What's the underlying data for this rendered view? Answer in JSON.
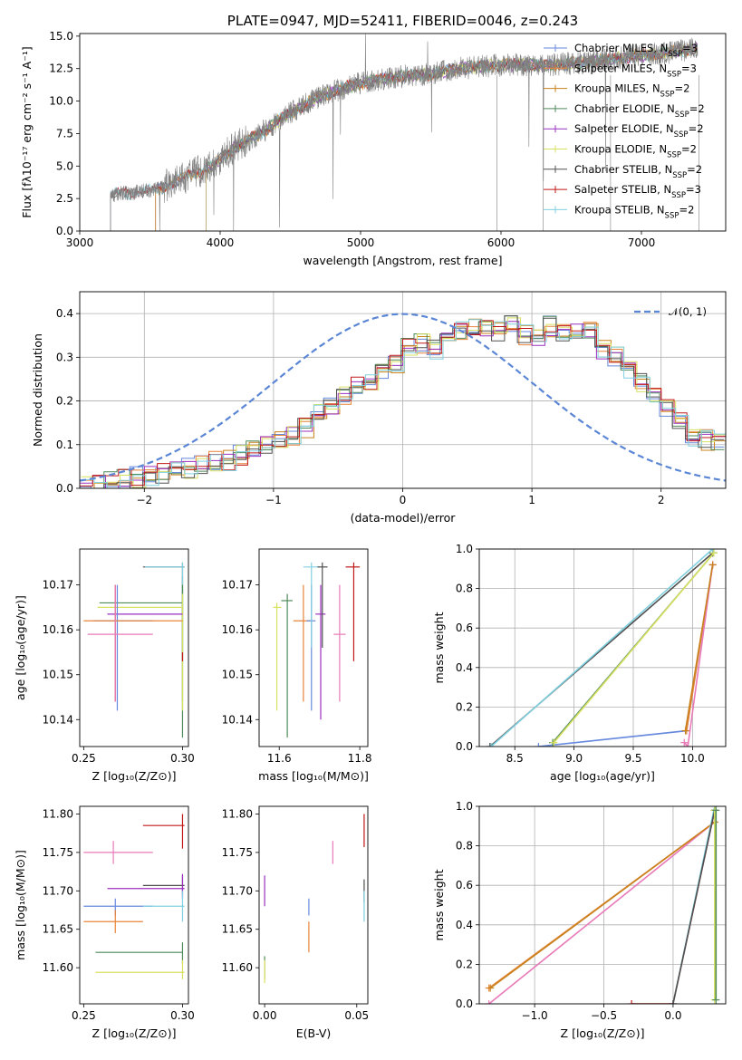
{
  "chart_data": [
    {
      "id": "spectrum",
      "type": "line",
      "title": "PLATE=0947, MJD=52411, FIBERID=0046, z=0.243",
      "xlabel": "wavelength [Angstrom, rest frame]",
      "ylabel": "Flux [fλ10⁻¹⁷ erg cm⁻² s⁻¹ A⁻¹]",
      "xlim": [
        3000,
        7600
      ],
      "ylim": [
        0,
        15.2
      ],
      "xticks": [
        3000,
        4000,
        5000,
        6000,
        7000
      ],
      "yticks": [
        0.0,
        2.5,
        5.0,
        7.5,
        10.0,
        12.5,
        15.0
      ],
      "grid": false,
      "legend_position": "top-right",
      "observed_color": "#808080",
      "observed_continuum": {
        "x": [
          3220,
          3400,
          3550,
          3700,
          3850,
          3950,
          4100,
          4300,
          4500,
          4700,
          4900,
          5100,
          5300,
          5500,
          5700,
          5900,
          6100,
          6300,
          6500,
          6700,
          6900,
          7100,
          7300,
          7400
        ],
        "y": [
          2.8,
          3.0,
          3.2,
          3.9,
          4.6,
          5.0,
          6.4,
          7.6,
          9.1,
          10.3,
          11.1,
          11.6,
          11.9,
          12.1,
          12.5,
          12.7,
          12.8,
          12.7,
          12.9,
          13.1,
          13.4,
          13.6,
          13.9,
          14.1
        ]
      },
      "series": [
        {
          "name": "Chabrier MILES, N",
          "sub": "SSP",
          "suffix": "=3",
          "color": "#6688dd",
          "start": 3540
        },
        {
          "name": "Salpeter MILES, N",
          "sub": "SSP",
          "suffix": "=3",
          "color": "#e8843a",
          "start": 3540
        },
        {
          "name": "Kroupa MILES, N",
          "sub": "SSP",
          "suffix": "=2",
          "color": "#c8821e",
          "start": 3540
        },
        {
          "name": "Chabrier ELODIE, N",
          "sub": "SSP",
          "suffix": "=2",
          "color": "#4f8a5a",
          "start": 3900
        },
        {
          "name": "Salpeter ELODIE, N",
          "sub": "SSP",
          "suffix": "=2",
          "color": "#9b30c0",
          "start": 3900
        },
        {
          "name": "Kroupa ELODIE, N",
          "sub": "SSP",
          "suffix": "=2",
          "color": "#d8e060",
          "start": 3900
        },
        {
          "name": "Chabrier STELIB, N",
          "sub": "SSP",
          "suffix": "=2",
          "color": "#505050",
          "start": 3220
        },
        {
          "name": "Salpeter STELIB, N",
          "sub": "SSP",
          "suffix": "=3",
          "color": "#c01818",
          "start": 3220
        },
        {
          "name": "Kroupa STELIB, N",
          "sub": "SSP",
          "suffix": "=2",
          "color": "#80d0e0",
          "start": 3220
        }
      ]
    },
    {
      "id": "residuals",
      "type": "line",
      "xlabel": "(data-model)/error",
      "ylabel": "Normed distribution",
      "xlim": [
        -2.5,
        2.5
      ],
      "ylim": [
        0,
        0.45
      ],
      "xticks": [
        -2,
        -1,
        0,
        1,
        2
      ],
      "xtick_labels": [
        "−2",
        "−1",
        "0",
        "1",
        "2"
      ],
      "yticks": [
        0.0,
        0.1,
        0.2,
        0.3,
        0.4
      ],
      "grid": true,
      "legend_position": "top-right",
      "gaussian": {
        "name": "𝒩(0, 1)",
        "color": "#5b86d6"
      },
      "histogram_base": {
        "bin_width": 0.1,
        "x_start": -2.5,
        "values": [
          0.005,
          0.01,
          0.015,
          0.02,
          0.025,
          0.03,
          0.035,
          0.04,
          0.045,
          0.05,
          0.06,
          0.065,
          0.075,
          0.085,
          0.1,
          0.11,
          0.12,
          0.14,
          0.17,
          0.19,
          0.21,
          0.23,
          0.25,
          0.27,
          0.28,
          0.32,
          0.33,
          0.32,
          0.34,
          0.36,
          0.37,
          0.37,
          0.36,
          0.38,
          0.35,
          0.34,
          0.37,
          0.35,
          0.36,
          0.36,
          0.32,
          0.3,
          0.27,
          0.24,
          0.22,
          0.18,
          0.15,
          0.12,
          0.11,
          0.1
        ]
      }
    },
    {
      "id": "age-vs-Z",
      "type": "scatter",
      "xlabel": "Z [log₁₀(Z/Z⊙)]",
      "ylabel": "age  [log₁₀(age/yr)]",
      "xlim": [
        0.248,
        0.303
      ],
      "ylim": [
        10.134,
        10.178
      ],
      "xticks": [
        0.25,
        0.3
      ],
      "xtick_labels": [
        "0.25",
        "0.30"
      ],
      "yticks": [
        10.14,
        10.15,
        10.16,
        10.17
      ],
      "grid": false,
      "points": [
        {
          "x": 0.3,
          "y": 10.1635,
          "xerr": [
            0.3,
            0.3
          ],
          "yerr": [
            10.136,
            10.172
          ],
          "color": "#4f8a5a"
        },
        {
          "x": 0.3,
          "y": 10.174,
          "xerr": [
            0.28,
            0.301
          ],
          "yerr": [
            10.153,
            10.175
          ],
          "color": "#505050"
        },
        {
          "x": 0.3,
          "y": 10.174,
          "xerr": [
            0.281,
            0.301
          ],
          "yerr": [
            10.154,
            10.175
          ],
          "color": "#80d0e0"
        },
        {
          "x": 0.3,
          "y": 10.166,
          "xerr": [
            0.258,
            0.3
          ],
          "yerr": [
            10.144,
            10.17
          ],
          "color": "#4f8a5a"
        },
        {
          "x": 0.3,
          "y": 10.165,
          "xerr": [
            0.257,
            0.3
          ],
          "yerr": [
            10.142,
            10.168
          ],
          "color": "#d8e060"
        },
        {
          "x": 0.266,
          "y": 10.1635,
          "xerr": [
            0.262,
            0.3
          ],
          "yerr": [
            10.144,
            10.17
          ],
          "color": "#9b30c0"
        },
        {
          "x": 0.267,
          "y": 10.162,
          "xerr": [
            0.255,
            0.285
          ],
          "yerr": [
            10.142,
            10.17
          ],
          "color": "#6688dd"
        },
        {
          "x": 0.266,
          "y": 10.162,
          "xerr": [
            0.25,
            0.3
          ],
          "yerr": [
            10.144,
            10.17
          ],
          "color": "#e8843a"
        },
        {
          "x": 0.266,
          "y": 10.159,
          "xerr": [
            0.252,
            0.285
          ],
          "yerr": [
            10.144,
            10.17
          ],
          "color": "#e87ab8"
        },
        {
          "x": 0.3,
          "y": 10.154,
          "xerr": [
            0.3,
            0.3
          ],
          "yerr": [
            10.153,
            10.155
          ],
          "color": "#c01818"
        }
      ]
    },
    {
      "id": "age-vs-mass",
      "type": "scatter",
      "xlabel": "mass [log₁₀(M/M⊙)]",
      "ylabel": "",
      "xlim": [
        11.55,
        11.82
      ],
      "ylim": [
        10.134,
        10.178
      ],
      "xticks": [
        11.6,
        11.8
      ],
      "xtick_labels": [
        "11.6",
        "11.8"
      ],
      "yticks": [
        10.14,
        10.15,
        10.16,
        10.17
      ],
      "grid": false,
      "points": [
        {
          "x": 11.594,
          "y": 10.165,
          "xerr": [
            11.585,
            11.605
          ],
          "yerr": [
            10.142,
            10.166
          ],
          "color": "#d8e060"
        },
        {
          "x": 11.62,
          "y": 10.1665,
          "xerr": [
            11.605,
            11.633
          ],
          "yerr": [
            10.136,
            10.168
          ],
          "color": "#4f8a5a"
        },
        {
          "x": 11.66,
          "y": 10.162,
          "xerr": [
            11.635,
            11.68
          ],
          "yerr": [
            10.144,
            10.17
          ],
          "color": "#e8843a"
        },
        {
          "x": 11.68,
          "y": 10.162,
          "xerr": [
            11.668,
            11.69
          ],
          "yerr": [
            10.142,
            10.17
          ],
          "color": "#6688dd"
        },
        {
          "x": 11.68,
          "y": 10.174,
          "xerr": [
            11.66,
            11.7
          ],
          "yerr": [
            10.156,
            10.175
          ],
          "color": "#80d0e0"
        },
        {
          "x": 11.703,
          "y": 10.1635,
          "xerr": [
            11.69,
            11.715
          ],
          "yerr": [
            10.14,
            10.17
          ],
          "color": "#9b30c0"
        },
        {
          "x": 11.707,
          "y": 10.174,
          "xerr": [
            11.695,
            11.72
          ],
          "yerr": [
            10.156,
            10.175
          ],
          "color": "#505050"
        },
        {
          "x": 11.75,
          "y": 10.159,
          "xerr": [
            11.735,
            11.765
          ],
          "yerr": [
            10.144,
            10.17
          ],
          "color": "#e87ab8"
        },
        {
          "x": 11.785,
          "y": 10.174,
          "xerr": [
            11.765,
            11.8
          ],
          "yerr": [
            10.153,
            10.175
          ],
          "color": "#c01818"
        }
      ]
    },
    {
      "id": "weight-vs-age",
      "type": "line",
      "xlabel": "age  [log₁₀(age/yr)]",
      "ylabel": "mass weight",
      "xlim": [
        8.2,
        10.28
      ],
      "ylim": [
        0,
        1.0
      ],
      "xticks": [
        8.5,
        9.0,
        9.5,
        10.0
      ],
      "xtick_labels": [
        "8.5",
        "9.0",
        "9.5",
        "10.0"
      ],
      "yticks": [
        0.0,
        0.2,
        0.4,
        0.6,
        0.8,
        1.0
      ],
      "grid": true,
      "series": [
        {
          "x": [
            8.7,
            9.95,
            10.17
          ],
          "y": [
            0.0,
            0.08,
            0.92
          ],
          "color": "#6688dd"
        },
        {
          "x": [
            9.95,
            10.17
          ],
          "y": [
            0.08,
            0.92
          ],
          "color": "#e8843a"
        },
        {
          "x": [
            9.93,
            9.96,
            10.17
          ],
          "y": [
            0.02,
            0.0,
            0.92
          ],
          "color": "#e87ab8"
        },
        {
          "x": [
            8.29,
            10.17
          ],
          "y": [
            0.0,
            0.98
          ],
          "color": "#505050"
        },
        {
          "x": [
            8.3,
            10.17
          ],
          "y": [
            0.0,
            1.0
          ],
          "color": "#80d0e0"
        },
        {
          "x": [
            8.82,
            10.18
          ],
          "y": [
            0.02,
            0.98
          ],
          "color": "#4f8a5a"
        },
        {
          "x": [
            8.83,
            10.18
          ],
          "y": [
            0.02,
            0.98
          ],
          "color": "#d8e060"
        },
        {
          "x": [
            9.94,
            10.17
          ],
          "y": [
            0.08,
            0.92
          ],
          "color": "#c8821e"
        }
      ]
    },
    {
      "id": "mass-vs-Z",
      "type": "scatter",
      "xlabel": "Z [log₁₀(Z/Z⊙)]",
      "ylabel": "mass [log₁₀(M/M⊙)]",
      "xlim": [
        0.248,
        0.303
      ],
      "ylim": [
        11.553,
        11.81
      ],
      "xticks": [
        0.25,
        0.3
      ],
      "xtick_labels": [
        "0.25",
        "0.30"
      ],
      "yticks": [
        11.6,
        11.65,
        11.7,
        11.75,
        11.8
      ],
      "grid": false,
      "points": [
        {
          "x": 0.3,
          "y": 11.785,
          "xerr": [
            0.28,
            0.301
          ],
          "yerr": [
            11.755,
            11.8
          ],
          "color": "#c01818"
        },
        {
          "x": 0.265,
          "y": 11.75,
          "xerr": [
            0.25,
            0.285
          ],
          "yerr": [
            11.735,
            11.765
          ],
          "color": "#e87ab8"
        },
        {
          "x": 0.3,
          "y": 11.707,
          "xerr": [
            0.28,
            0.301
          ],
          "yerr": [
            11.695,
            11.72
          ],
          "color": "#505050"
        },
        {
          "x": 0.3,
          "y": 11.703,
          "xerr": [
            0.262,
            0.301
          ],
          "yerr": [
            11.69,
            11.722
          ],
          "color": "#9b30c0"
        },
        {
          "x": 0.266,
          "y": 11.68,
          "xerr": [
            0.25,
            0.285
          ],
          "yerr": [
            11.668,
            11.69
          ],
          "color": "#6688dd"
        },
        {
          "x": 0.3,
          "y": 11.68,
          "xerr": [
            0.28,
            0.301
          ],
          "yerr": [
            11.66,
            11.7
          ],
          "color": "#80d0e0"
        },
        {
          "x": 0.266,
          "y": 11.66,
          "xerr": [
            0.25,
            0.28
          ],
          "yerr": [
            11.645,
            11.675
          ],
          "color": "#e8843a"
        },
        {
          "x": 0.3,
          "y": 11.62,
          "xerr": [
            0.256,
            0.3
          ],
          "yerr": [
            11.605,
            11.633
          ],
          "color": "#4f8a5a"
        },
        {
          "x": 0.3,
          "y": 11.594,
          "xerr": [
            0.256,
            0.301
          ],
          "yerr": [
            11.585,
            11.61
          ],
          "color": "#d8e060"
        }
      ]
    },
    {
      "id": "mass-vs-EBV",
      "type": "scatter",
      "xlabel": "E(B-V)",
      "ylabel": "",
      "xlim": [
        -0.003,
        0.056
      ],
      "ylim": [
        11.553,
        11.81
      ],
      "xticks": [
        0.0,
        0.05
      ],
      "xtick_labels": [
        "0.00",
        "0.05"
      ],
      "yticks": [
        11.6,
        11.65,
        11.7,
        11.75,
        11.8
      ],
      "grid": false,
      "points": [
        {
          "x": 0.054,
          "y": 11.785,
          "xerr": [
            0.054,
            0.054
          ],
          "yerr": [
            11.757,
            11.8
          ],
          "color": "#c01818"
        },
        {
          "x": 0.037,
          "y": 11.75,
          "xerr": [
            0.037,
            0.037
          ],
          "yerr": [
            11.735,
            11.765
          ],
          "color": "#e87ab8"
        },
        {
          "x": 0.054,
          "y": 11.7,
          "xerr": [
            0.054,
            0.054
          ],
          "yerr": [
            11.685,
            11.715
          ],
          "color": "#505050"
        },
        {
          "x": 0.054,
          "y": 11.68,
          "xerr": [
            0.054,
            0.054
          ],
          "yerr": [
            11.66,
            11.7
          ],
          "color": "#80d0e0"
        },
        {
          "x": 0.0,
          "y": 11.703,
          "xerr": [
            0.0,
            0.0
          ],
          "yerr": [
            11.68,
            11.72
          ],
          "color": "#9b30c0"
        },
        {
          "x": 0.024,
          "y": 11.68,
          "xerr": [
            0.024,
            0.024
          ],
          "yerr": [
            11.668,
            11.69
          ],
          "color": "#6688dd"
        },
        {
          "x": 0.024,
          "y": 11.64,
          "xerr": [
            0.024,
            0.024
          ],
          "yerr": [
            11.62,
            11.66
          ],
          "color": "#e8843a"
        },
        {
          "x": 0.0,
          "y": 11.6,
          "xerr": [
            0.0,
            0.0
          ],
          "yerr": [
            11.585,
            11.615
          ],
          "color": "#4f8a5a"
        },
        {
          "x": 0.0,
          "y": 11.594,
          "xerr": [
            0.0,
            0.0
          ],
          "yerr": [
            11.58,
            11.61
          ],
          "color": "#d8e060"
        }
      ]
    },
    {
      "id": "weight-vs-Z",
      "type": "line",
      "xlabel": "Z [log₁₀(Z/Z⊙)]",
      "ylabel": "mass weight",
      "xlim": [
        -1.4,
        0.38
      ],
      "ylim": [
        0,
        1.0
      ],
      "xticks": [
        -1.0,
        -0.5,
        0.0
      ],
      "xtick_labels": [
        "−1.0",
        "−0.5",
        "0.0"
      ],
      "yticks": [
        0.0,
        0.2,
        0.4,
        0.6,
        0.8,
        1.0
      ],
      "grid": true,
      "series": [
        {
          "x": [
            -1.33,
            0.3
          ],
          "y": [
            0.08,
            0.92
          ],
          "color": "#e8843a"
        },
        {
          "x": [
            -1.33,
            0.3
          ],
          "y": [
            0.0,
            0.92
          ],
          "color": "#e87ab8"
        },
        {
          "x": [
            -1.32,
            0.3
          ],
          "y": [
            0.08,
            0.92
          ],
          "color": "#c8821e"
        },
        {
          "x": [
            -0.3,
            0.0,
            0.3
          ],
          "y": [
            0.0,
            0.0,
            0.98
          ],
          "color": "#c01818"
        },
        {
          "x": [
            0.0,
            0.3
          ],
          "y": [
            0.0,
            1.0
          ],
          "color": "#80d0e0"
        },
        {
          "x": [
            0.0,
            0.3
          ],
          "y": [
            0.0,
            0.98
          ],
          "color": "#505050"
        },
        {
          "x": [
            0.3,
            0.3
          ],
          "y": [
            0.02,
            0.98
          ],
          "color": "#d8e060"
        },
        {
          "x": [
            0.31,
            0.31
          ],
          "y": [
            0.02,
            0.98
          ],
          "color": "#4f8a5a"
        }
      ]
    }
  ]
}
